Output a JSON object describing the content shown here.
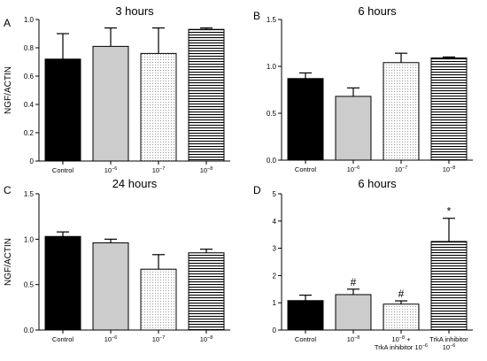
{
  "colors": {
    "black": "#000000",
    "gray": "#cccccc",
    "white": "#ffffff",
    "axis": "#000000"
  },
  "chart_data": [
    {
      "panel": "A",
      "type": "bar",
      "title": "3 hours",
      "ylabel": "NGF/ACTIN",
      "ylim": [
        0,
        1.0
      ],
      "yticks": [
        "0",
        "0.2",
        "0.4",
        "0.6",
        "0.8",
        "1.0"
      ],
      "categories": [
        {
          "label": "Control",
          "fill": "solid-black"
        },
        {
          "label": "10",
          "sup": "−6",
          "fill": "solid-gray"
        },
        {
          "label": "10",
          "sup": "−7",
          "fill": "dots"
        },
        {
          "label": "10",
          "sup": "−8",
          "fill": "h-lines"
        }
      ],
      "values": [
        0.72,
        0.81,
        0.76,
        0.93
      ],
      "errors": [
        0.18,
        0.13,
        0.18,
        0.01
      ],
      "annotations": [
        "",
        "",
        "",
        ""
      ]
    },
    {
      "panel": "B",
      "type": "bar",
      "title": "6 hours",
      "ylabel": "",
      "ylim": [
        0,
        1.5
      ],
      "yticks": [
        "0.0",
        "0.5",
        "1.0",
        "1.5"
      ],
      "categories": [
        {
          "label": "Control",
          "fill": "solid-black"
        },
        {
          "label": "10",
          "sup": "−6",
          "fill": "solid-gray"
        },
        {
          "label": "10",
          "sup": "−7",
          "fill": "dots"
        },
        {
          "label": "10",
          "sup": "−8",
          "fill": "h-lines"
        }
      ],
      "values": [
        0.87,
        0.68,
        1.04,
        1.09
      ],
      "errors": [
        0.06,
        0.09,
        0.1,
        0.01
      ],
      "annotations": [
        "",
        "",
        "",
        ""
      ]
    },
    {
      "panel": "C",
      "type": "bar",
      "title": "24 hours",
      "ylabel": "NGF/ACTIN",
      "ylim": [
        0,
        1.5
      ],
      "yticks": [
        "0.0",
        "0.5",
        "1.0",
        "1.5"
      ],
      "categories": [
        {
          "label": "Control",
          "fill": "solid-black"
        },
        {
          "label": "10",
          "sup": "−6",
          "fill": "solid-gray"
        },
        {
          "label": "10",
          "sup": "−7",
          "fill": "dots"
        },
        {
          "label": "10",
          "sup": "−8",
          "fill": "h-lines"
        }
      ],
      "values": [
        1.03,
        0.96,
        0.67,
        0.85
      ],
      "errors": [
        0.05,
        0.04,
        0.16,
        0.04
      ],
      "annotations": [
        "",
        "",
        "",
        ""
      ]
    },
    {
      "panel": "D",
      "type": "bar",
      "title": "6 hours",
      "ylabel": "",
      "ylim": [
        0,
        5
      ],
      "yticks": [
        "0",
        "1",
        "2",
        "3",
        "4",
        "5"
      ],
      "categories": [
        {
          "label": "Control",
          "fill": "solid-black"
        },
        {
          "label": "10",
          "sup": "−8",
          "fill": "solid-gray"
        },
        {
          "label": "10",
          "sup": "−8",
          "label_after": " +",
          "line2": "TrkA inhibitor 10",
          "line2_sup": "−6",
          "fill": "dots"
        },
        {
          "label": "TrkA inhibitor",
          "line2": "10",
          "line2_sup": "−6",
          "fill": "h-lines"
        }
      ],
      "values": [
        1.08,
        1.3,
        0.95,
        3.25
      ],
      "errors": [
        0.2,
        0.2,
        0.12,
        0.85
      ],
      "annotations": [
        "",
        "#",
        "#",
        "*"
      ]
    }
  ]
}
